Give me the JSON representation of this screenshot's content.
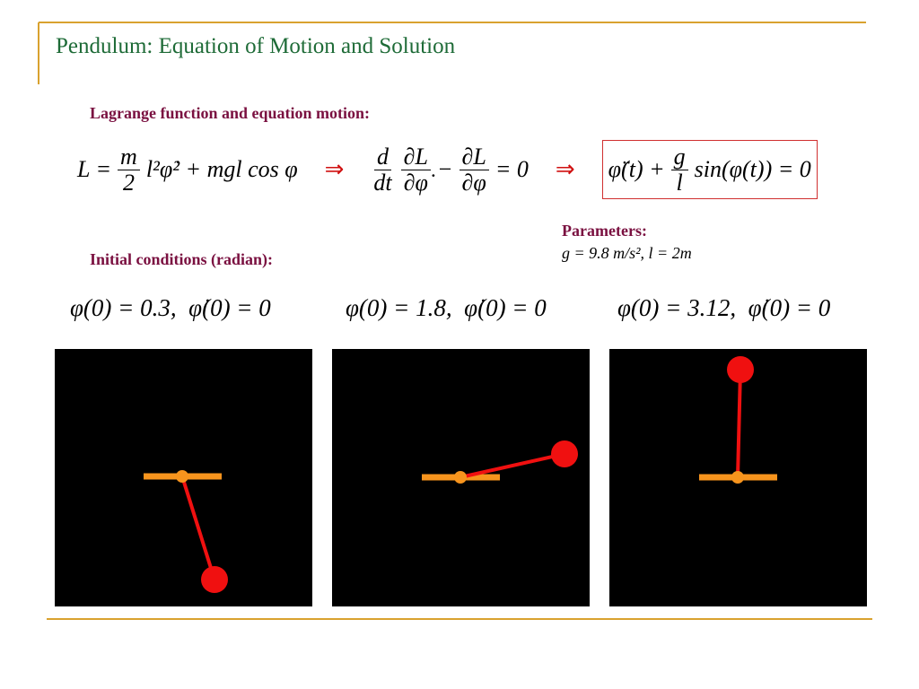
{
  "title": "Pendulum: Equation of Motion and Solution",
  "lagrange_heading": "Lagrange function and equation motion:",
  "equations": [
    [
      "L =",
      {
        "num": "m",
        "den": "2"
      },
      "l²φ̇² + mgl cos φ"
    ],
    [
      "⇒"
    ],
    [
      {
        "num": "d",
        "den": "dt"
      },
      {
        "num": "∂L",
        "den": "∂φ̇"
      },
      "−",
      {
        "num": "∂L",
        "den": "∂φ"
      },
      "= 0"
    ],
    [
      "⇒"
    ],
    [
      "φ̈(t) +",
      {
        "num": "g",
        "den": "l"
      },
      "sin(φ(t)) = 0"
    ]
  ],
  "parameters": {
    "heading": "Parameters:",
    "text": "g = 9.8 m/s²,  l = 2m"
  },
  "initial_heading": "Initial conditions (radian):",
  "initial_conditions": [
    "φ(0) = 0.3,  φ̇(0) = 0",
    "φ(0) = 1.8,  φ̇(0) = 0",
    "φ(0) = 3.12,  φ̇(0) = 0"
  ]
}
